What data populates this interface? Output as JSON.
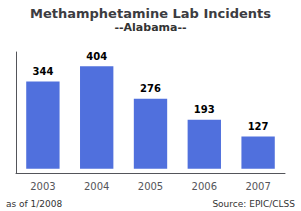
{
  "chart_data": {
    "type": "bar",
    "title": "Methamphetamine Lab Incidents",
    "subtitle": "--Alabama--",
    "categories": [
      "2003",
      "2004",
      "2005",
      "2006",
      "2007"
    ],
    "values": [
      344,
      404,
      276,
      193,
      127
    ],
    "ylim": [
      -16.56,
      460
    ],
    "yticks": [],
    "grid": false,
    "data_labels": true,
    "tick_labels": "x",
    "annotations": [
      "as of 1/2008",
      "Source: EPIC/CLSS"
    ]
  }
}
